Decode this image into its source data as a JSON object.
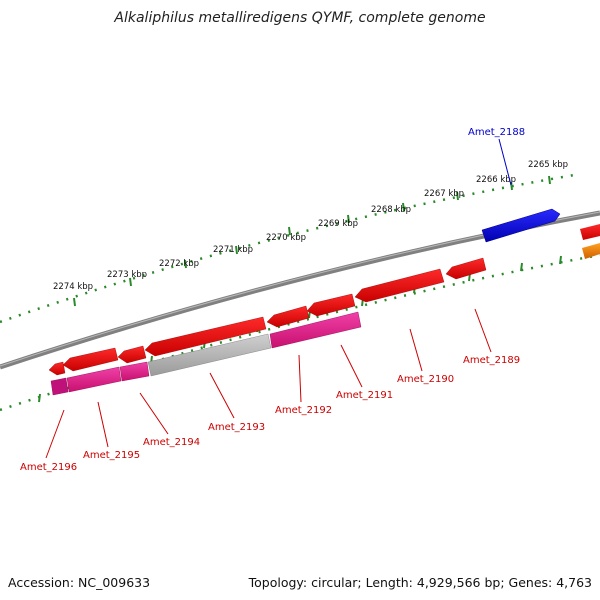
{
  "title": "Alkaliphilus metalliredigens QYMF, complete genome",
  "footer": {
    "accession": "Accession: NC_009633",
    "summary": "Topology: circular; Length: 4,929,566 bp; Genes: 4,763"
  },
  "ruler_labels": [
    "2265 kbp",
    "2266 kbp",
    "2267 kbp",
    "2268 kbp",
    "2269 kbp",
    "2270 kbp",
    "2271 kbp",
    "2272 kbp",
    "2273 kbp",
    "2274 kbp"
  ],
  "genes": [
    {
      "id": "Amet_2188",
      "color": "#0000ee"
    },
    {
      "id": "Amet_2189",
      "color": "#ee0000"
    },
    {
      "id": "Amet_2190",
      "color": "#ee0000"
    },
    {
      "id": "Amet_2191",
      "color": "#ee0000"
    },
    {
      "id": "Amet_2192",
      "color": "#ee0000"
    },
    {
      "id": "Amet_2193",
      "color": "#ee0000"
    },
    {
      "id": "Amet_2194",
      "color": "#ee0000"
    },
    {
      "id": "Amet_2195",
      "color": "#ee0000"
    },
    {
      "id": "Amet_2196",
      "color": "#ee0000"
    }
  ],
  "colors": {
    "backbone": "#808080",
    "ticks": "#2a8a2a",
    "red_gene": "#ee0000",
    "blue_gene": "#0000ee",
    "magenta_feature": "#e0208c",
    "grey_feature": "#b0b0b0",
    "orange_feature": "#f08000"
  }
}
